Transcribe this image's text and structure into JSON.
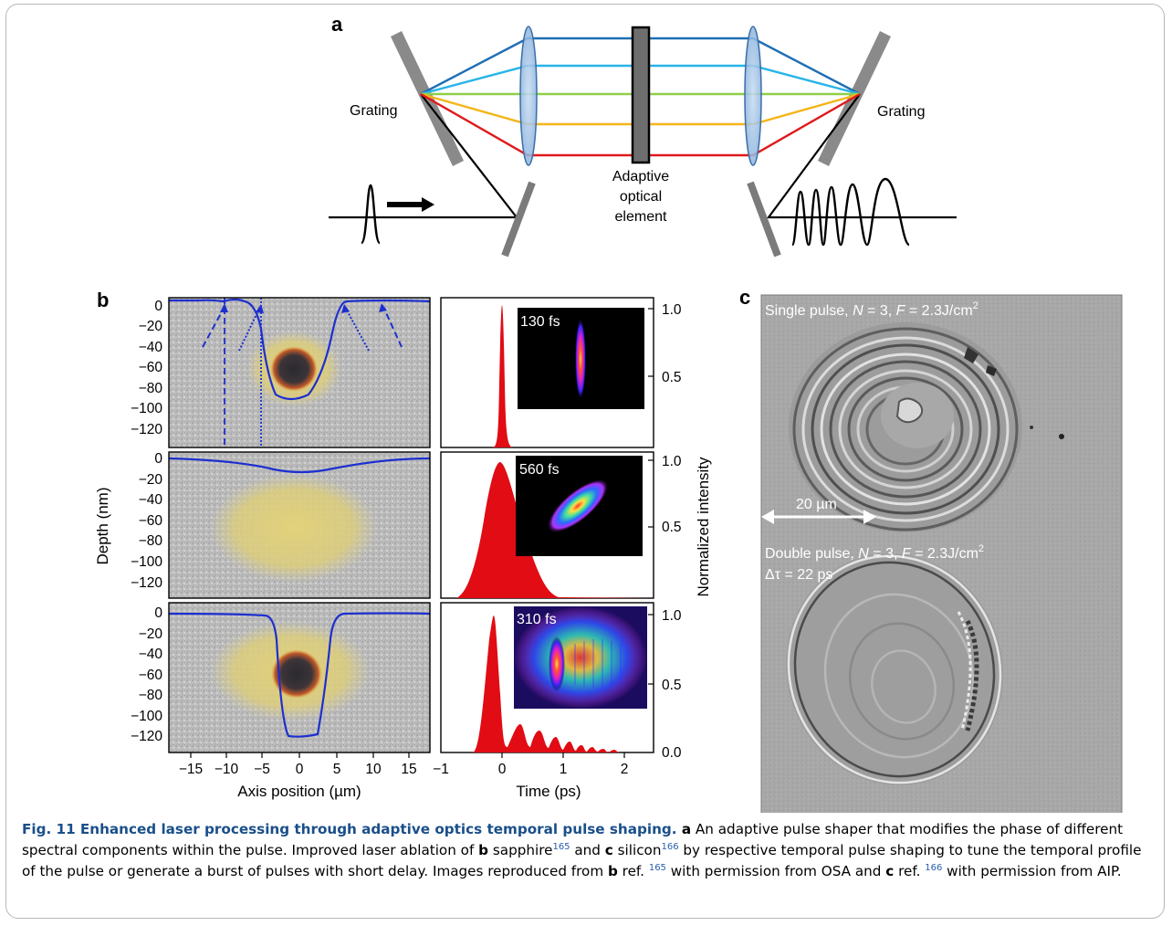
{
  "panel_a": {
    "label": "a",
    "grating_left": "Grating",
    "grating_right": "Grating",
    "aoe_line1": "Adaptive",
    "aoe_line2": "optical",
    "aoe_line3": "element",
    "beam_colors": [
      "#1f6fb5",
      "#27b4e8",
      "#8fcf4a",
      "#f5b51a",
      "#e0191b"
    ]
  },
  "panel_b": {
    "label": "b",
    "ylabel_left": "Depth (nm)",
    "xlabel_left": "Axis position (µm)",
    "ylabel_right": "Normalized intensity",
    "xlabel_right": "Time (ps)",
    "depth_ticks": [
      "0",
      "−20",
      "−40",
      "−60",
      "−80",
      "−100",
      "−120"
    ],
    "axis_ticks": [
      "−15",
      "−10",
      "−5",
      "0",
      "5",
      "10",
      "15"
    ],
    "time_ticks": [
      "−1",
      "0",
      "1",
      "2"
    ],
    "intensity_ticks": [
      "1.0",
      "0.5",
      "0.0"
    ],
    "pulse_labels": [
      "130 fs",
      "560 fs",
      "310 fs"
    ]
  },
  "panel_c": {
    "label": "c",
    "single_prefix": "Single pulse, ",
    "single_n": "N",
    "single_eq": " = 3, ",
    "single_f": "F",
    "single_val": " = 2.3J/cm",
    "single_sup": "2",
    "scalebar": "20 µm",
    "double_prefix": "Double pulse, ",
    "double_n": "N",
    "double_eq": " = 3, ",
    "double_f": "F",
    "double_val": " = 2.3J/cm",
    "double_sup": "2",
    "delay": "Δτ = 22 ps"
  },
  "caption": {
    "title": "Fig. 11 Enhanced laser processing through adaptive optics temporal pulse shaping.",
    "s1": " a",
    "s2": " An adaptive pulse shaper that modifies the phase of different spectral components within the pulse. Improved laser ablation of ",
    "s3": "b",
    "s4": " sapphire",
    "ref1": "165",
    "s5": " and ",
    "s6": "c",
    "s7": " silicon",
    "ref2": "166",
    "s8": " by respective temporal pulse shaping to tune the temporal profile of the pulse or generate a burst of pulses with short delay. Images reproduced from ",
    "s9": "b",
    "s10": " ref. ",
    "ref3": "165",
    "s11": " with permission from OSA and ",
    "s12": "c",
    "s13": " ref. ",
    "ref4": "166",
    "s14": " with permission from AIP."
  }
}
